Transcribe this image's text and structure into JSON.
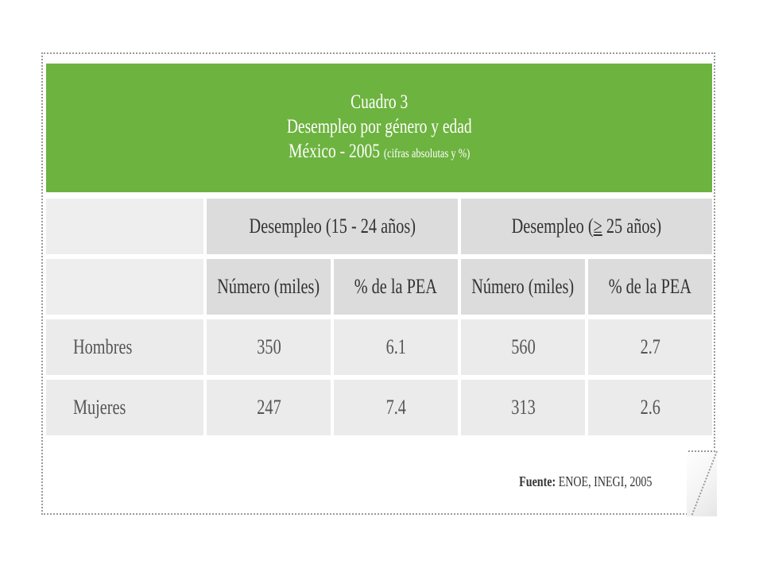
{
  "title": {
    "line1": "Cuadro 3",
    "line2": "Desempleo por género y edad",
    "line3_main": "México - 2005",
    "line3_small": "(cifras absolutas y %)"
  },
  "table": {
    "group_headers": {
      "young_prefix": "Desempleo (15 - 24 años)",
      "adult_prefix": "Desempleo (",
      "adult_symbol": "≥",
      "adult_suffix": " 25 años)"
    },
    "sub_headers": [
      "Número (miles)",
      "% de la PEA",
      "Número (miles)",
      "% de la PEA"
    ],
    "rows": [
      {
        "label": "Hombres",
        "values": [
          "350",
          "6.1",
          "560",
          "2.7"
        ]
      },
      {
        "label": "Mujeres",
        "values": [
          "247",
          "7.4",
          "313",
          "2.6"
        ]
      }
    ]
  },
  "source": {
    "label": "Fuente:",
    "text": " ENOE, INEGI, 2005"
  },
  "colors": {
    "header_green": "#6db33f",
    "header_gray": "#dcdcdc",
    "row_gray": "#ebebeb"
  }
}
